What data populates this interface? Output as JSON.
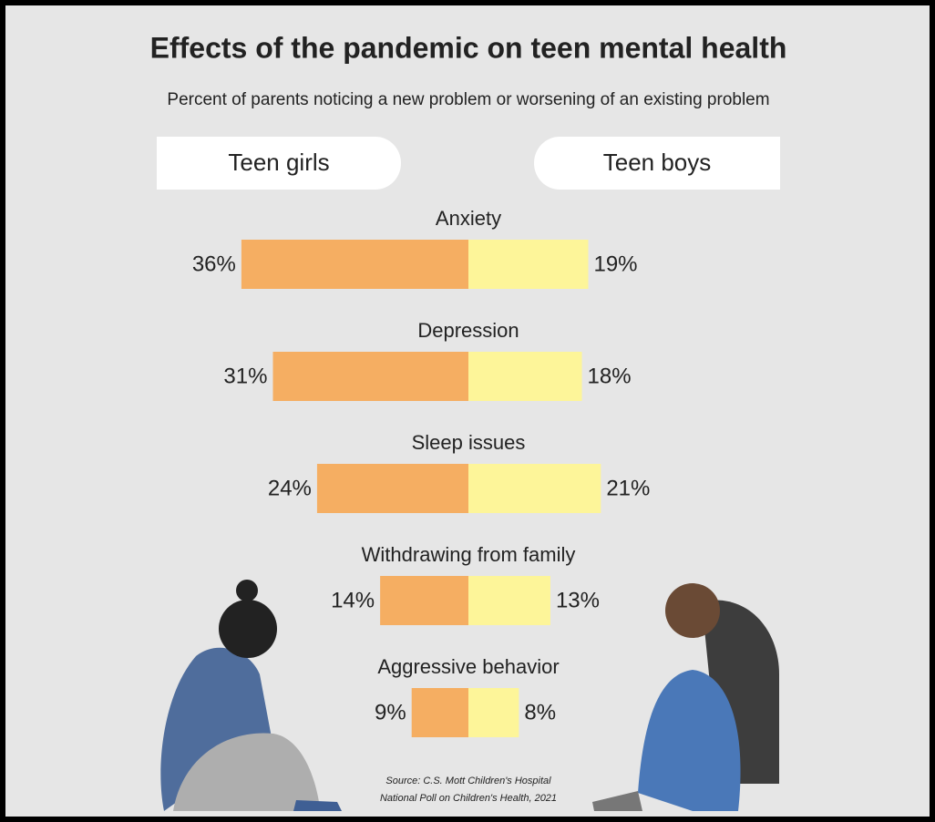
{
  "chart_data": {
    "type": "butterfly",
    "title": "Effects of the pandemic on teen mental health",
    "subtitle": "Percent of parents noticing a new problem or worsening of an existing problem",
    "categories": [
      "Anxiety",
      "Depression",
      "Sleep issues",
      "Withdrawing from family",
      "Aggressive behavior"
    ],
    "series": [
      {
        "name": "Teen girls",
        "color": "#f5ae62",
        "values": [
          36,
          31,
          24,
          14,
          9
        ],
        "value_labels": [
          "36%",
          "31%",
          "24%",
          "14%",
          "9%"
        ]
      },
      {
        "name": "Teen boys",
        "color": "#fdf599",
        "values": [
          19,
          18,
          21,
          13,
          8
        ],
        "value_labels": [
          "19%",
          "18%",
          "21%",
          "13%",
          "8%"
        ]
      }
    ],
    "source": [
      "Source: C.S. Mott Children's Hospital",
      "National Poll on Children's Health, 2021"
    ]
  }
}
